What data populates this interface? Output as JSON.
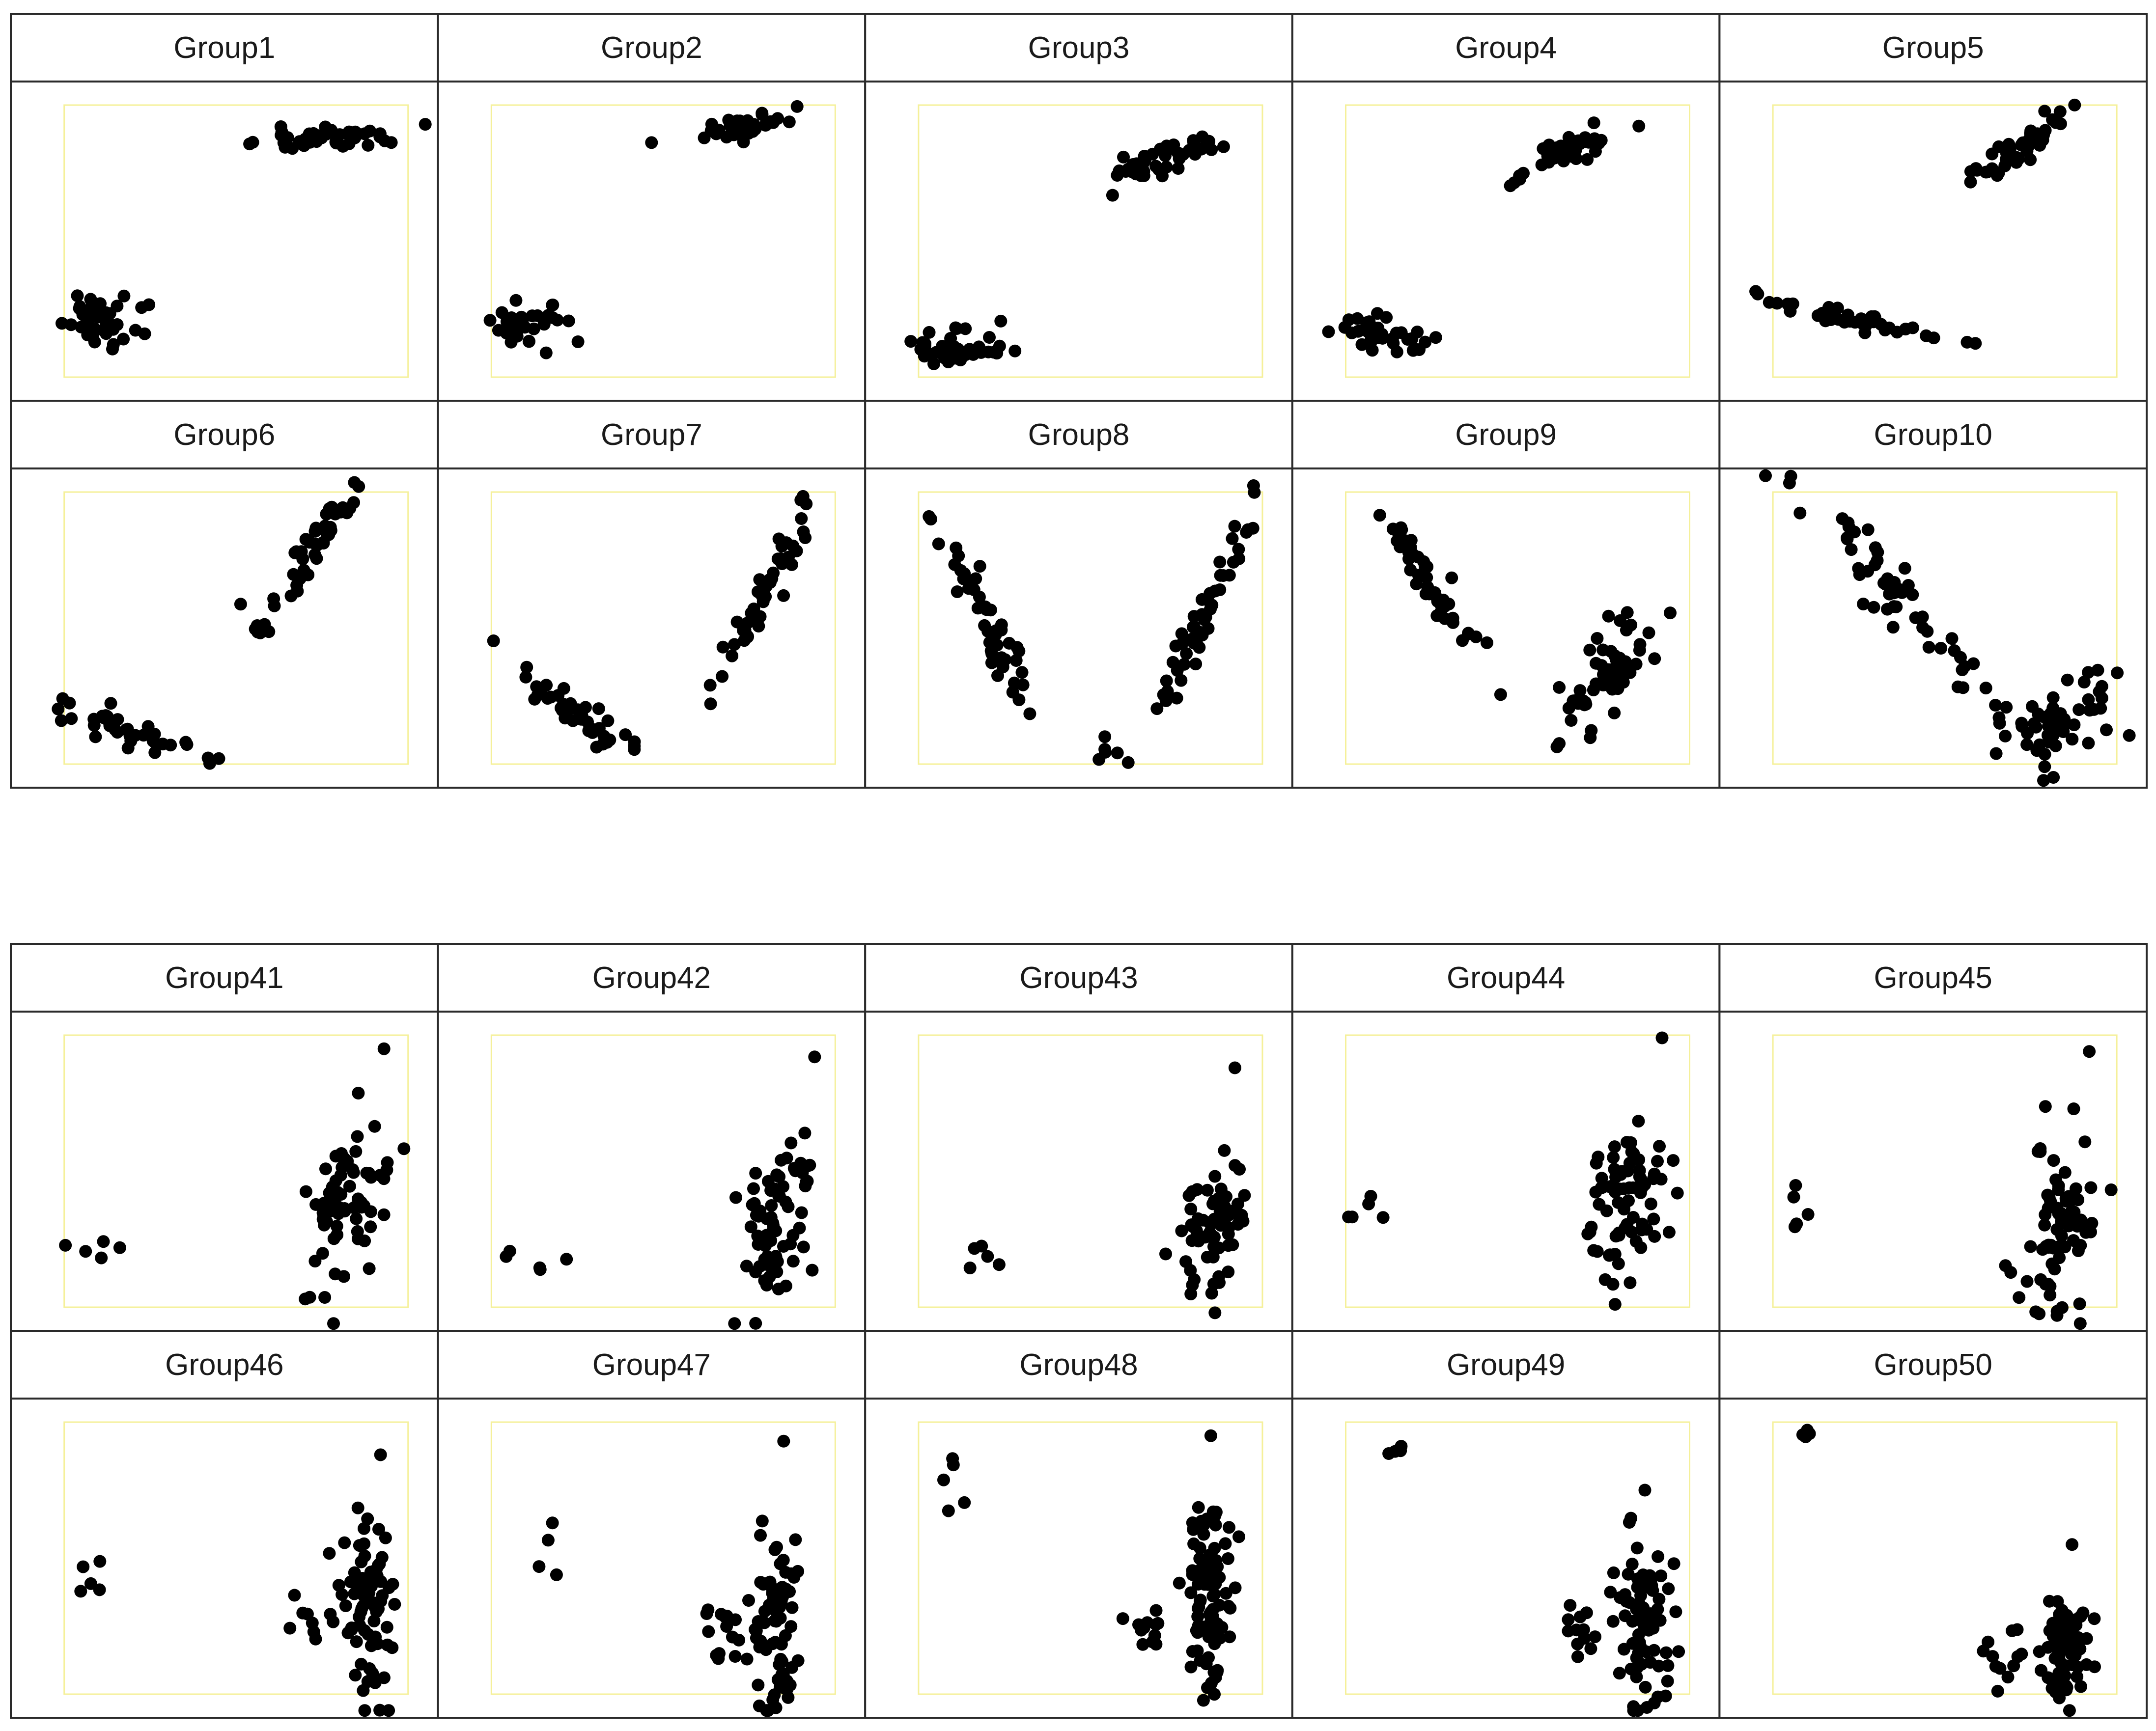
{
  "chart_data": [
    {
      "block": "top",
      "type": "scatter",
      "grid": false,
      "colors": {
        "points": "#000000",
        "plot_region_border": "#f5f09a",
        "frame": "#2a2a2a"
      },
      "panels": [
        {
          "title": "Group1",
          "clusters": [
            {
              "center": [
                0.12,
                0.2
              ],
              "spread": [
                0.07,
                0.05
              ],
              "n": 38,
              "corr": 0.0
            },
            {
              "center": [
                0.75,
                0.88
              ],
              "spread": [
                0.09,
                0.022
              ],
              "n": 45,
              "corr": 0.3
            }
          ]
        },
        {
          "title": "Group2",
          "clusters": [
            {
              "center": [
                0.11,
                0.2
              ],
              "spread": [
                0.06,
                0.05
              ],
              "n": 35,
              "corr": 0.0
            },
            {
              "center": [
                0.74,
                0.92
              ],
              "spread": [
                0.07,
                0.025
              ],
              "n": 40,
              "corr": 0.5
            }
          ]
        },
        {
          "title": "Group3",
          "clusters": [
            {
              "center": [
                0.11,
                0.1
              ],
              "spread": [
                0.07,
                0.04
              ],
              "n": 38,
              "corr": 0.0
            },
            {
              "center": [
                0.7,
                0.8
              ],
              "spread": [
                0.07,
                0.04
              ],
              "n": 45,
              "corr": 0.7
            }
          ]
        },
        {
          "title": "Group4",
          "clusters": [
            {
              "center": [
                0.12,
                0.15
              ],
              "spread": [
                0.08,
                0.04
              ],
              "n": 38,
              "corr": -0.3
            },
            {
              "center": [
                0.64,
                0.83
              ],
              "spread": [
                0.07,
                0.05
              ],
              "n": 45,
              "corr": 0.8
            }
          ]
        },
        {
          "title": "Group5",
          "clusters": [
            {
              "center": [
                0.2,
                0.22
              ],
              "spread": [
                0.13,
                0.035
              ],
              "n": 38,
              "corr": -0.85
            },
            {
              "center": [
                0.73,
                0.85
              ],
              "spread": [
                0.07,
                0.07
              ],
              "n": 45,
              "corr": 0.9
            }
          ]
        },
        {
          "title": "Group6",
          "clusters": [
            {
              "center": [
                0.2,
                0.12
              ],
              "spread": [
                0.11,
                0.06
              ],
              "n": 40,
              "corr": -0.9
            },
            {
              "center": [
                0.72,
                0.78
              ],
              "spread": [
                0.07,
                0.13
              ],
              "n": 50,
              "corr": 0.92
            }
          ]
        },
        {
          "title": "Group7",
          "clusters": [
            {
              "center": [
                0.25,
                0.18
              ],
              "spread": [
                0.1,
                0.09
              ],
              "n": 40,
              "corr": -0.92
            },
            {
              "center": [
                0.8,
                0.65
              ],
              "spread": [
                0.07,
                0.17
              ],
              "n": 50,
              "corr": 0.95
            }
          ]
        },
        {
          "title": "Group8",
          "clusters": [
            {
              "center": [
                0.22,
                0.48
              ],
              "spread": [
                0.08,
                0.18
              ],
              "n": 45,
              "corr": -0.95
            },
            {
              "center": [
                0.82,
                0.52
              ],
              "spread": [
                0.07,
                0.2
              ],
              "n": 50,
              "corr": 0.95
            },
            {
              "center": [
                0.55,
                0.05
              ],
              "spread": [
                0.04,
                0.03
              ],
              "n": 6,
              "corr": 0.0
            }
          ]
        },
        {
          "title": "Group9",
          "clusters": [
            {
              "center": [
                0.25,
                0.66
              ],
              "spread": [
                0.09,
                0.18
              ],
              "n": 45,
              "corr": -0.95
            },
            {
              "center": [
                0.75,
                0.33
              ],
              "spread": [
                0.09,
                0.13
              ],
              "n": 55,
              "corr": 0.8
            }
          ]
        },
        {
          "title": "Group10",
          "clusters": [
            {
              "center": [
                0.38,
                0.6
              ],
              "spread": [
                0.15,
                0.22
              ],
              "n": 55,
              "corr": -0.96
            },
            {
              "center": [
                0.82,
                0.16
              ],
              "spread": [
                0.09,
                0.08
              ],
              "n": 55,
              "corr": 0.3
            }
          ]
        }
      ]
    },
    {
      "block": "bottom",
      "type": "scatter",
      "grid": false,
      "colors": {
        "points": "#000000",
        "plot_region_border": "#f5f09a",
        "frame": "#2a2a2a"
      },
      "panels": [
        {
          "title": "Group41",
          "clusters": [
            {
              "center": [
                0.1,
                0.2
              ],
              "spread": [
                0.06,
                0.03
              ],
              "n": 5,
              "corr": 0.0
            },
            {
              "center": [
                0.82,
                0.38
              ],
              "spread": [
                0.05,
                0.16
              ],
              "n": 70,
              "corr": 0.3
            }
          ],
          "outliers": [
            [
              0.93,
              0.95
            ]
          ]
        },
        {
          "title": "Group42",
          "clusters": [
            {
              "center": [
                0.13,
                0.14
              ],
              "spread": [
                0.05,
                0.05
              ],
              "n": 5,
              "corr": 0.0
            },
            {
              "center": [
                0.84,
                0.3
              ],
              "spread": [
                0.05,
                0.16
              ],
              "n": 75,
              "corr": 0.3
            }
          ],
          "outliers": [
            [
              0.94,
              0.92
            ]
          ]
        },
        {
          "title": "Group43",
          "clusters": [
            {
              "center": [
                0.16,
                0.22
              ],
              "spread": [
                0.04,
                0.04
              ],
              "n": 5,
              "corr": 0.0
            },
            {
              "center": [
                0.86,
                0.3
              ],
              "spread": [
                0.05,
                0.14
              ],
              "n": 70,
              "corr": 0.3
            }
          ],
          "outliers": [
            [
              0.92,
              0.88
            ]
          ]
        },
        {
          "title": "Group44",
          "clusters": [
            {
              "center": [
                0.07,
                0.37
              ],
              "spread": [
                0.03,
                0.04
              ],
              "n": 5,
              "corr": 0.0
            },
            {
              "center": [
                0.82,
                0.4
              ],
              "spread": [
                0.06,
                0.16
              ],
              "n": 75,
              "corr": 0.3
            }
          ],
          "outliers": [
            [
              0.92,
              0.99
            ]
          ]
        },
        {
          "title": "Group45",
          "clusters": [
            {
              "center": [
                0.07,
                0.34
              ],
              "spread": [
                0.03,
                0.05
              ],
              "n": 5,
              "corr": 0.0
            },
            {
              "center": [
                0.84,
                0.3
              ],
              "spread": [
                0.06,
                0.17
              ],
              "n": 80,
              "corr": 0.3
            }
          ],
          "outliers": [
            [
              0.92,
              0.94
            ]
          ]
        },
        {
          "title": "Group46",
          "clusters": [
            {
              "center": [
                0.08,
                0.42
              ],
              "spread": [
                0.02,
                0.04
              ],
              "n": 5,
              "corr": 0.0
            },
            {
              "center": [
                0.88,
                0.33
              ],
              "spread": [
                0.04,
                0.16
              ],
              "n": 75,
              "corr": 0.0
            },
            {
              "center": [
                0.74,
                0.28
              ],
              "spread": [
                0.04,
                0.04
              ],
              "n": 10,
              "corr": 0.0
            }
          ],
          "outliers": [
            [
              0.92,
              0.88
            ]
          ]
        },
        {
          "title": "Group47",
          "clusters": [
            {
              "center": [
                0.17,
                0.56
              ],
              "spread": [
                0.02,
                0.05
              ],
              "n": 4,
              "corr": 0.0
            },
            {
              "center": [
                0.82,
                0.28
              ],
              "spread": [
                0.04,
                0.17
              ],
              "n": 75,
              "corr": 0.0
            },
            {
              "center": [
                0.68,
                0.2
              ],
              "spread": [
                0.04,
                0.06
              ],
              "n": 12,
              "corr": 0.0
            }
          ],
          "outliers": [
            [
              0.85,
              0.93
            ]
          ]
        },
        {
          "title": "Group48",
          "clusters": [
            {
              "center": [
                0.09,
                0.78
              ],
              "spread": [
                0.02,
                0.06
              ],
              "n": 5,
              "corr": 0.0
            },
            {
              "center": [
                0.85,
                0.36
              ],
              "spread": [
                0.04,
                0.2
              ],
              "n": 85,
              "corr": 0.0
            },
            {
              "center": [
                0.67,
                0.27
              ],
              "spread": [
                0.03,
                0.07
              ],
              "n": 12,
              "corr": 0.0
            }
          ],
          "outliers": [
            [
              0.85,
              0.95
            ]
          ]
        },
        {
          "title": "Group49",
          "clusters": [
            {
              "center": [
                0.16,
                0.9
              ],
              "spread": [
                0.015,
                0.02
              ],
              "n": 4,
              "corr": 0.0
            },
            {
              "center": [
                0.86,
                0.26
              ],
              "spread": [
                0.04,
                0.16
              ],
              "n": 75,
              "corr": 0.0
            },
            {
              "center": [
                0.68,
                0.22
              ],
              "spread": [
                0.03,
                0.06
              ],
              "n": 12,
              "corr": 0.0
            }
          ],
          "outliers": [
            [
              0.87,
              0.75
            ]
          ]
        },
        {
          "title": "Group50",
          "clusters": [
            {
              "center": [
                0.09,
                0.95
              ],
              "spread": [
                0.012,
                0.02
              ],
              "n": 4,
              "corr": 0.0
            },
            {
              "center": [
                0.85,
                0.16
              ],
              "spread": [
                0.04,
                0.1
              ],
              "n": 70,
              "corr": 0.0
            },
            {
              "center": [
                0.67,
                0.17
              ],
              "spread": [
                0.03,
                0.06
              ],
              "n": 12,
              "corr": 0.0
            }
          ],
          "outliers": [
            [
              0.87,
              0.55
            ]
          ]
        }
      ]
    }
  ]
}
